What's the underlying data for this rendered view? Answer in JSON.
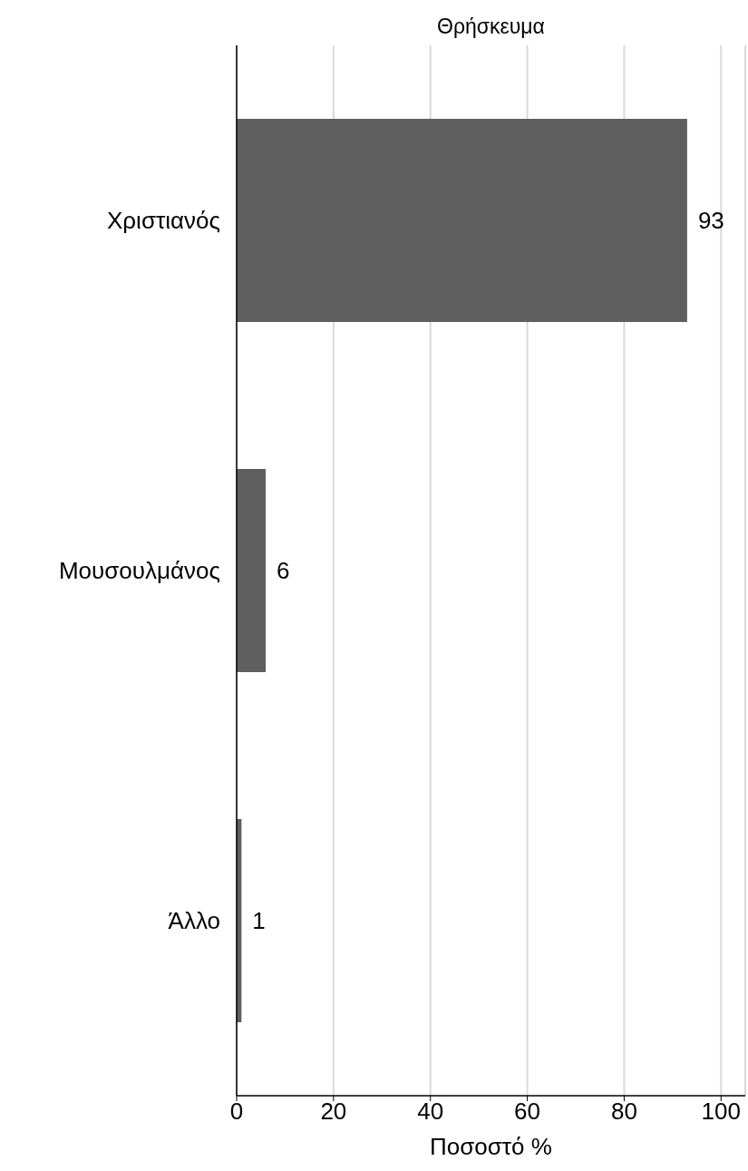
{
  "chart_data": {
    "type": "bar",
    "orientation": "horizontal",
    "title": "Θρήσκευμα",
    "xlabel": "Ποσοστό %",
    "categories": [
      "Χριστιανός",
      "Μουσουλμάνος",
      "Άλλο"
    ],
    "values": [
      93,
      6,
      1
    ],
    "color": "#5f5f5f",
    "xlim": [
      0,
      105
    ],
    "xticks": [
      0,
      20,
      40,
      60,
      80,
      100
    ],
    "grid": "x",
    "data_labels": true
  }
}
